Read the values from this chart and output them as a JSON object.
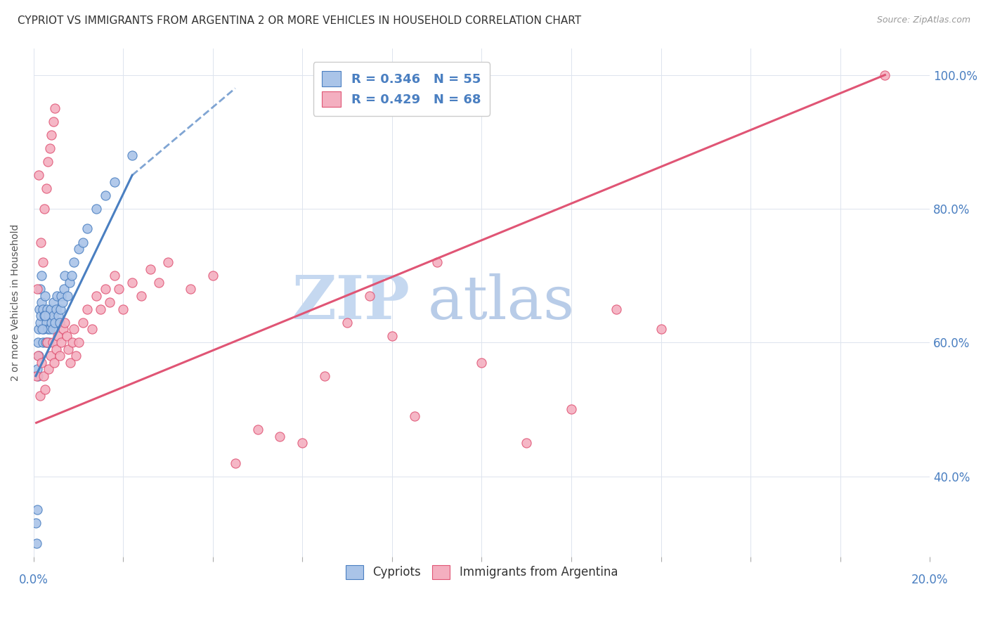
{
  "title": "CYPRIOT VS IMMIGRANTS FROM ARGENTINA 2 OR MORE VEHICLES IN HOUSEHOLD CORRELATION CHART",
  "source": "Source: ZipAtlas.com",
  "ylabel": "2 or more Vehicles in Household",
  "xlim": [
    0.0,
    20.0
  ],
  "ylim": [
    28.0,
    104.0
  ],
  "right_y_tick_labels": [
    "40.0%",
    "60.0%",
    "80.0%",
    "100.0%"
  ],
  "right_y_ticks": [
    40.0,
    60.0,
    80.0,
    100.0
  ],
  "cypriot_color": "#aac4e8",
  "argentina_color": "#f4afc0",
  "trend_cypriot_color": "#4a7fc1",
  "trend_argentina_color": "#e05575",
  "watermark_zip_color": "#c5d8f0",
  "watermark_atlas_color": "#b8cce8",
  "background_color": "#ffffff",
  "grid_color": "#dde4ee",
  "cypriot_x": [
    0.05,
    0.08,
    0.1,
    0.1,
    0.12,
    0.13,
    0.14,
    0.15,
    0.16,
    0.17,
    0.18,
    0.2,
    0.2,
    0.22,
    0.24,
    0.25,
    0.27,
    0.28,
    0.3,
    0.3,
    0.32,
    0.33,
    0.35,
    0.36,
    0.38,
    0.4,
    0.42,
    0.44,
    0.45,
    0.48,
    0.5,
    0.52,
    0.55,
    0.58,
    0.6,
    0.62,
    0.65,
    0.68,
    0.7,
    0.75,
    0.8,
    0.85,
    0.9,
    1.0,
    1.1,
    1.2,
    1.4,
    1.6,
    1.8,
    0.06,
    0.09,
    0.11,
    0.19,
    0.26,
    2.2
  ],
  "cypriot_y": [
    33.0,
    35.0,
    55.0,
    60.0,
    62.0,
    65.0,
    63.0,
    68.0,
    64.0,
    66.0,
    70.0,
    60.0,
    65.0,
    62.0,
    64.0,
    67.0,
    60.0,
    63.0,
    65.0,
    60.0,
    62.0,
    64.0,
    60.0,
    62.0,
    65.0,
    63.0,
    62.0,
    64.0,
    66.0,
    63.0,
    65.0,
    67.0,
    64.0,
    63.0,
    65.0,
    67.0,
    66.0,
    68.0,
    70.0,
    67.0,
    69.0,
    70.0,
    72.0,
    74.0,
    75.0,
    77.0,
    80.0,
    82.0,
    84.0,
    30.0,
    56.0,
    58.0,
    62.0,
    64.0,
    88.0
  ],
  "argentina_x": [
    0.06,
    0.1,
    0.14,
    0.18,
    0.22,
    0.26,
    0.3,
    0.34,
    0.38,
    0.42,
    0.46,
    0.5,
    0.54,
    0.58,
    0.62,
    0.66,
    0.7,
    0.74,
    0.78,
    0.82,
    0.86,
    0.9,
    0.95,
    1.0,
    1.1,
    1.2,
    1.3,
    1.4,
    1.5,
    1.6,
    1.7,
    1.8,
    1.9,
    2.0,
    2.2,
    2.4,
    2.6,
    2.8,
    3.0,
    3.5,
    4.0,
    4.5,
    5.0,
    5.5,
    6.0,
    6.5,
    7.0,
    7.5,
    8.0,
    8.5,
    9.0,
    10.0,
    11.0,
    12.0,
    13.0,
    14.0,
    0.08,
    0.12,
    0.16,
    0.2,
    0.24,
    0.28,
    0.32,
    0.36,
    0.4,
    0.44,
    0.48,
    19.0
  ],
  "argentina_y": [
    55.0,
    58.0,
    52.0,
    57.0,
    55.0,
    53.0,
    60.0,
    56.0,
    58.0,
    60.0,
    57.0,
    59.0,
    61.0,
    58.0,
    60.0,
    62.0,
    63.0,
    61.0,
    59.0,
    57.0,
    60.0,
    62.0,
    58.0,
    60.0,
    63.0,
    65.0,
    62.0,
    67.0,
    65.0,
    68.0,
    66.0,
    70.0,
    68.0,
    65.0,
    69.0,
    67.0,
    71.0,
    69.0,
    72.0,
    68.0,
    70.0,
    42.0,
    47.0,
    46.0,
    45.0,
    55.0,
    63.0,
    67.0,
    61.0,
    49.0,
    72.0,
    57.0,
    45.0,
    50.0,
    65.0,
    62.0,
    68.0,
    85.0,
    75.0,
    72.0,
    80.0,
    83.0,
    87.0,
    89.0,
    91.0,
    93.0,
    95.0,
    100.0
  ]
}
